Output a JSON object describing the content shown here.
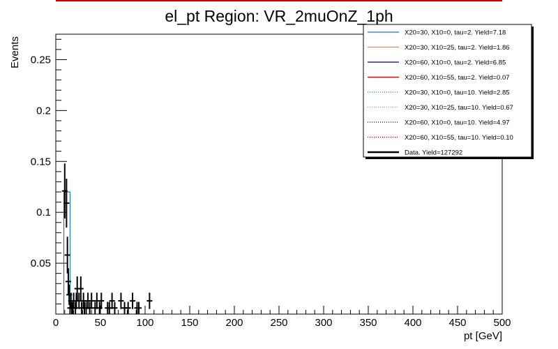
{
  "chart_data": {
    "type": "histogram",
    "title": "el_pt Region: VR_2muOnZ_1ph",
    "xlabel": "pt [GeV]",
    "ylabel": "Events",
    "xlim": [
      0,
      500
    ],
    "ylim": [
      0,
      0.275
    ],
    "x_ticks": [
      0,
      50,
      100,
      150,
      200,
      250,
      300,
      350,
      400,
      450,
      500
    ],
    "y_ticks": [
      0.05,
      0.1,
      0.15,
      0.2,
      0.25
    ],
    "grid": false,
    "legend_position": "top-right",
    "series": [
      {
        "name": "X20=30, X10=0, tau=2. Yield=7.18",
        "style": "solid",
        "color": "#1f77b4",
        "bins": [
          [
            9,
            16,
            0.12
          ]
        ]
      },
      {
        "name": "X20=30, X10=25, tau=2. Yield=1.86",
        "style": "solid",
        "color": "#ff7f0e",
        "bins": []
      },
      {
        "name": "X20=60, X10=0, tau=2. Yield=6.85",
        "style": "solid",
        "color": "#000080",
        "bins": []
      },
      {
        "name": "X20=60, X10=55, tau=2. Yield=0.07",
        "style": "solid",
        "color": "#cc0000",
        "bins": []
      },
      {
        "name": "X20=30, X10=0, tau=10. Yield=2.85",
        "style": "dotted",
        "color": "#1f77b4",
        "bins": []
      },
      {
        "name": "X20=30, X10=25, tau=10. Yield=0.67",
        "style": "dotted",
        "color": "#ff7f0e",
        "bins": []
      },
      {
        "name": "X20=60, X10=0, tau=10. Yield=4.97",
        "style": "dotted",
        "color": "#000080",
        "bins": []
      },
      {
        "name": "X20=60, X10=55, tau=10. Yield=0.10",
        "style": "dotted",
        "color": "#cc0000",
        "bins": []
      }
    ],
    "data": {
      "name": "Data. Yield=127292",
      "color": "#000000",
      "points": [
        {
          "x": 10,
          "y": 0.121,
          "err": 0.027
        },
        {
          "x": 12,
          "y": 0.109,
          "err": 0.024
        },
        {
          "x": 13,
          "y": 0.058,
          "err": 0.018
        },
        {
          "x": 14,
          "y": 0.032,
          "err": 0.013
        },
        {
          "x": 15,
          "y": 0.019,
          "err": 0.01
        },
        {
          "x": 16,
          "y": 0.006,
          "err": 0.006
        },
        {
          "x": 17,
          "y": 0.013,
          "err": 0.008
        },
        {
          "x": 18,
          "y": 0.006,
          "err": 0.006
        },
        {
          "x": 19,
          "y": 0.006,
          "err": 0.006
        },
        {
          "x": 20,
          "y": 0.013,
          "err": 0.008
        },
        {
          "x": 22,
          "y": 0.006,
          "err": 0.006
        },
        {
          "x": 23,
          "y": 0.013,
          "err": 0.008
        },
        {
          "x": 24,
          "y": 0.025,
          "err": 0.012
        },
        {
          "x": 26,
          "y": 0.013,
          "err": 0.008
        },
        {
          "x": 28,
          "y": 0.025,
          "err": 0.012
        },
        {
          "x": 29,
          "y": 0.006,
          "err": 0.006
        },
        {
          "x": 31,
          "y": 0.013,
          "err": 0.008
        },
        {
          "x": 32,
          "y": 0.006,
          "err": 0.006
        },
        {
          "x": 34,
          "y": 0.006,
          "err": 0.006
        },
        {
          "x": 36,
          "y": 0.013,
          "err": 0.008
        },
        {
          "x": 38,
          "y": 0.006,
          "err": 0.006
        },
        {
          "x": 40,
          "y": 0.013,
          "err": 0.008
        },
        {
          "x": 44,
          "y": 0.006,
          "err": 0.006
        },
        {
          "x": 46,
          "y": 0.013,
          "err": 0.008
        },
        {
          "x": 49,
          "y": 0.006,
          "err": 0.006
        },
        {
          "x": 51,
          "y": 0.013,
          "err": 0.008
        },
        {
          "x": 58,
          "y": 0.006,
          "err": 0.006
        },
        {
          "x": 60,
          "y": 0.006,
          "err": 0.006
        },
        {
          "x": 63,
          "y": 0.013,
          "err": 0.008
        },
        {
          "x": 66,
          "y": 0.006,
          "err": 0.006
        },
        {
          "x": 73,
          "y": 0.013,
          "err": 0.008
        },
        {
          "x": 77,
          "y": 0.006,
          "err": 0.006
        },
        {
          "x": 81,
          "y": 0.006,
          "err": 0.006
        },
        {
          "x": 86,
          "y": 0.013,
          "err": 0.008
        },
        {
          "x": 91,
          "y": 0.006,
          "err": 0.006
        },
        {
          "x": 93,
          "y": 0.006,
          "err": 0.006
        },
        {
          "x": 105,
          "y": 0.013,
          "err": 0.008
        }
      ]
    }
  }
}
